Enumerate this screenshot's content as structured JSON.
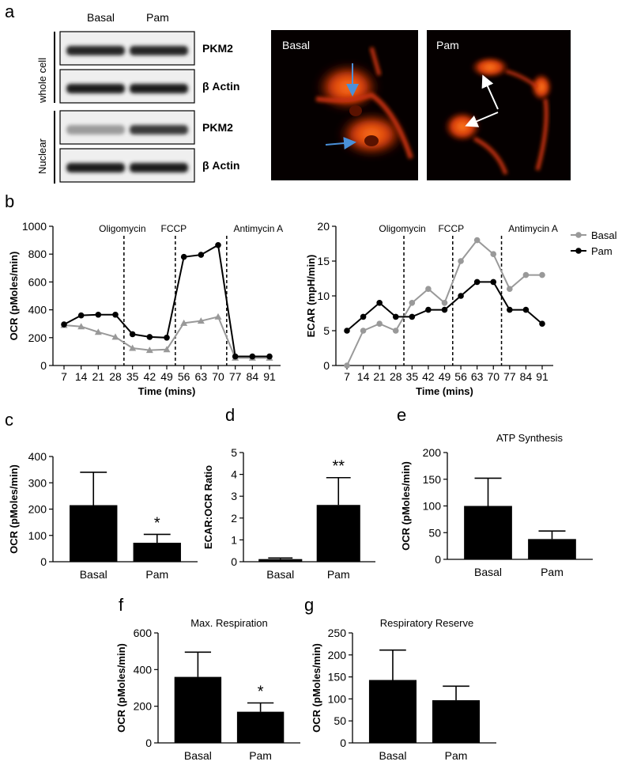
{
  "panel_labels": {
    "a": "a",
    "b": "b",
    "c": "c",
    "d": "d",
    "e": "e",
    "f": "f",
    "g": "g"
  },
  "western_blot": {
    "lanes": [
      "Basal",
      "Pam"
    ],
    "groups": [
      "whole cell",
      "Nuclear"
    ],
    "rows": [
      {
        "label": "PKM2",
        "band_intensity": [
          0.9,
          0.9
        ]
      },
      {
        "label": "β Actin",
        "band_intensity": [
          0.95,
          0.95
        ]
      },
      {
        "label": "PKM2",
        "band_intensity": [
          0.35,
          0.8
        ]
      },
      {
        "label": "β Actin",
        "band_intensity": [
          0.95,
          0.95
        ]
      }
    ]
  },
  "micrographs": [
    {
      "label": "Basal",
      "arrow_color": "#4a90d9"
    },
    {
      "label": "Pam",
      "arrow_color": "#ffffff"
    }
  ],
  "chart_data": [
    {
      "type": "line",
      "xlabel": "Time (mins)",
      "ylabel": "OCR (pMoles/min)",
      "ylim": [
        0,
        1000
      ],
      "yticks": [
        0,
        200,
        400,
        600,
        800,
        1000
      ],
      "x": [
        7,
        14,
        21,
        28,
        35,
        42,
        49,
        56,
        63,
        70,
        77,
        84,
        91
      ],
      "series": [
        {
          "name": "Basal",
          "color": "#999999",
          "marker": "triangle",
          "values": [
            290,
            280,
            240,
            205,
            125,
            110,
            115,
            305,
            320,
            350,
            55,
            55,
            55
          ]
        },
        {
          "name": "Pam",
          "color": "#000000",
          "marker": "circle",
          "values": [
            295,
            360,
            365,
            365,
            225,
            205,
            200,
            780,
            795,
            865,
            65,
            65,
            65
          ]
        }
      ],
      "annotations": [
        {
          "label": "Oligomycin",
          "at": 31.5
        },
        {
          "label": "FCCP",
          "at": 52.5
        },
        {
          "label": "Antimycin  A",
          "at": 73.5
        }
      ]
    },
    {
      "type": "line",
      "xlabel": "Time (mins)",
      "ylabel": "ECAR (mpH/min)",
      "ylim": [
        0,
        20
      ],
      "yticks": [
        0,
        5,
        10,
        15,
        20
      ],
      "x": [
        7,
        14,
        21,
        28,
        35,
        42,
        49,
        56,
        63,
        70,
        77,
        84,
        91
      ],
      "series": [
        {
          "name": "Basal",
          "color": "#999999",
          "marker": "circle",
          "values": [
            0,
            5,
            6,
            5,
            9,
            11,
            9,
            15,
            18,
            16,
            11,
            13,
            13
          ]
        },
        {
          "name": "Pam",
          "color": "#000000",
          "marker": "circle",
          "values": [
            5,
            7,
            9,
            7,
            7,
            8,
            8,
            10,
            12,
            12,
            8,
            8,
            6
          ]
        }
      ],
      "annotations": [
        {
          "label": "Oligomycin",
          "at": 31.5
        },
        {
          "label": "FCCP",
          "at": 52.5
        },
        {
          "label": "Antimycin  A",
          "at": 73.5
        }
      ],
      "legend": {
        "position": "right",
        "entries": [
          "Basal",
          "Pam"
        ]
      }
    },
    {
      "type": "bar",
      "title": "",
      "ylabel": "OCR (pMoles/min)",
      "ylim": [
        0,
        400
      ],
      "yticks": [
        0,
        100,
        200,
        300,
        400
      ],
      "categories": [
        "Basal",
        "Pam"
      ],
      "values": [
        215,
        72
      ],
      "errors": [
        125,
        32
      ],
      "significance": [
        "",
        "*"
      ]
    },
    {
      "type": "bar",
      "title": "",
      "ylabel": "ECAR:OCR Ratio",
      "ylim": [
        0,
        5
      ],
      "yticks": [
        0,
        1,
        2,
        3,
        4,
        5
      ],
      "categories": [
        "Basal",
        "Pam"
      ],
      "values": [
        0.12,
        2.6
      ],
      "errors": [
        0.05,
        1.25
      ],
      "significance": [
        "",
        "**"
      ]
    },
    {
      "type": "bar",
      "title": "ATP Synthesis",
      "ylabel": "OCR (pMoles/min)",
      "ylim": [
        0,
        200
      ],
      "yticks": [
        0,
        50,
        100,
        150,
        200
      ],
      "categories": [
        "Basal",
        "Pam"
      ],
      "values": [
        100,
        38
      ],
      "errors": [
        52,
        15
      ],
      "significance": [
        "",
        ""
      ]
    },
    {
      "type": "bar",
      "title": "Max. Respiration",
      "ylabel": "OCR (pMoles/min)",
      "ylim": [
        0,
        600
      ],
      "yticks": [
        0,
        200,
        400,
        600
      ],
      "categories": [
        "Basal",
        "Pam"
      ],
      "values": [
        360,
        170
      ],
      "errors": [
        135,
        48
      ],
      "significance": [
        "",
        "*"
      ]
    },
    {
      "type": "bar",
      "title": "Respiratory Reserve",
      "ylabel": "OCR (pMoles/min)",
      "ylim": [
        0,
        250
      ],
      "yticks": [
        0,
        50,
        100,
        150,
        200,
        250
      ],
      "categories": [
        "Basal",
        "Pam"
      ],
      "values": [
        143,
        97
      ],
      "errors": [
        68,
        32
      ],
      "significance": [
        "",
        ""
      ]
    }
  ]
}
